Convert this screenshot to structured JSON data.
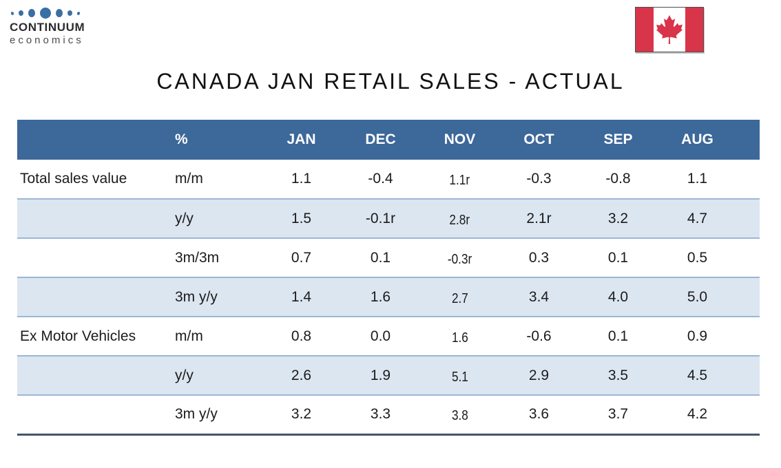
{
  "logo": {
    "brand": "CONTINUUM",
    "subtext": "economics"
  },
  "flag": {
    "country": "Canada"
  },
  "title": "CANADA JAN RETAIL SALES - ACTUAL",
  "chart_data": {
    "type": "table",
    "title": "CANADA JAN RETAIL SALES - ACTUAL",
    "unit": "%",
    "headers": [
      "",
      "%",
      "JAN",
      "DEC",
      "NOV",
      "OCT",
      "SEP",
      "AUG"
    ],
    "rows": [
      {
        "label": "Total sales value",
        "measure": "m/m",
        "values": [
          "1.1",
          "-0.4",
          "1.1r",
          "-0.3",
          "-0.8",
          "1.1"
        ]
      },
      {
        "label": "",
        "measure": "y/y",
        "values": [
          "1.5",
          "-0.1r",
          "2.8r",
          "2.1r",
          "3.2",
          "4.7"
        ]
      },
      {
        "label": "",
        "measure": "3m/3m",
        "values": [
          "0.7",
          "0.1",
          "-0.3r",
          "0.3",
          "0.1",
          "0.5"
        ]
      },
      {
        "label": "",
        "measure": "3m y/y",
        "values": [
          "1.4",
          "1.6",
          "2.7",
          "3.4",
          "4.0",
          "5.0"
        ]
      },
      {
        "label": "Ex Motor Vehicles",
        "measure": "m/m",
        "values": [
          "0.8",
          "0.0",
          "1.6",
          "-0.6",
          "0.1",
          "0.9"
        ]
      },
      {
        "label": "",
        "measure": "y/y",
        "values": [
          "2.6",
          "1.9",
          "5.1",
          "2.9",
          "3.5",
          "4.5"
        ]
      },
      {
        "label": "",
        "measure": "3m y/y",
        "values": [
          "3.2",
          "3.3",
          "3.8",
          "3.6",
          "3.7",
          "4.2"
        ]
      }
    ]
  },
  "colors": {
    "header_bg": "#3c689a",
    "alt_row_bg": "#dce6f1",
    "row_divider": "#9cb6d6",
    "bottom_border": "#44546a",
    "logo_blue": "#3a6fa5",
    "flag_red": "#d8354b",
    "header_text": "#ffffff",
    "body_text": "#1b1b1b"
  }
}
